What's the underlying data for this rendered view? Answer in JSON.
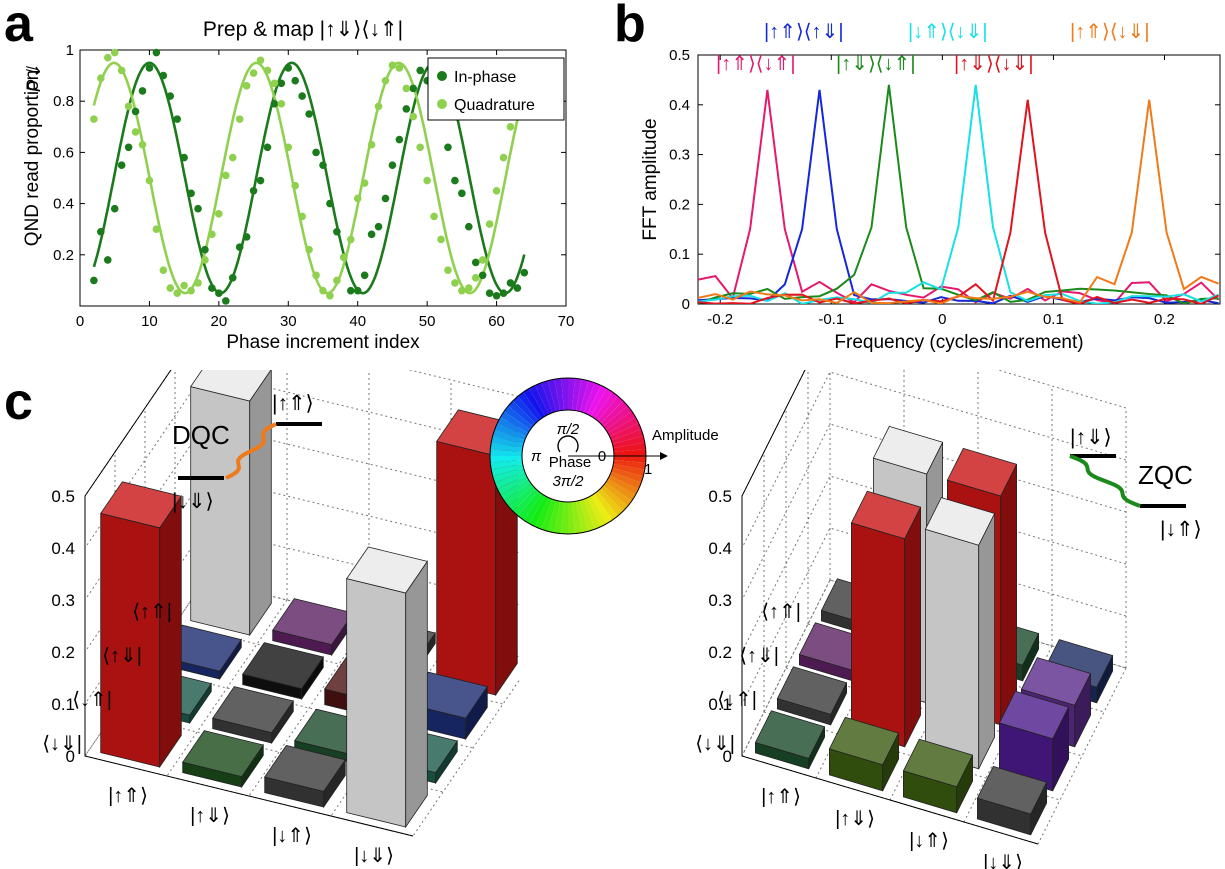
{
  "panels": {
    "a": "a",
    "b": "b",
    "c": "c"
  },
  "chart_data": [
    {
      "type": "line",
      "id": "a",
      "title": "Prep & map |↑⇓⟩⟨↓⇑|",
      "xlabel": "Phase increment index",
      "ylabel": "QND read proportion",
      "ylabel_symbol": "P⇓",
      "xlim": [
        0,
        70
      ],
      "ylim": [
        0,
        1
      ],
      "xticks": [
        0,
        10,
        20,
        30,
        40,
        50,
        60,
        70
      ],
      "yticks": [
        0.2,
        0.4,
        0.6,
        0.8,
        1
      ],
      "legend_position": "top-right",
      "series": [
        {
          "name": "In-phase",
          "color": "#1b7a1b",
          "fit": {
            "offset": 0.5,
            "amplitude": 0.45,
            "period": 20.5,
            "phase_peak_x": 10
          },
          "points": [
            [
              2,
              0.1
            ],
            [
              3,
              0.29
            ],
            [
              4,
              0.18
            ],
            [
              5,
              0.38
            ],
            [
              6,
              0.55
            ],
            [
              7,
              0.62
            ],
            [
              8,
              0.76
            ],
            [
              9,
              0.84
            ],
            [
              10,
              0.93
            ],
            [
              11,
              0.99
            ],
            [
              12,
              0.9
            ],
            [
              13,
              0.82
            ],
            [
              14,
              0.73
            ],
            [
              15,
              0.58
            ],
            [
              16,
              0.44
            ],
            [
              17,
              0.38
            ],
            [
              18,
              0.22
            ],
            [
              19,
              0.07
            ],
            [
              20,
              0.05
            ],
            [
              21,
              0.02
            ],
            [
              22,
              0.11
            ],
            [
              23,
              0.23
            ],
            [
              24,
              0.27
            ],
            [
              25,
              0.45
            ],
            [
              26,
              0.49
            ],
            [
              27,
              0.62
            ],
            [
              28,
              0.79
            ],
            [
              29,
              0.87
            ],
            [
              30,
              0.93
            ],
            [
              31,
              0.88
            ],
            [
              32,
              0.82
            ],
            [
              33,
              0.75
            ],
            [
              34,
              0.6
            ],
            [
              35,
              0.55
            ],
            [
              36,
              0.4
            ],
            [
              37,
              0.29
            ],
            [
              38,
              0.19
            ],
            [
              39,
              0.06
            ],
            [
              40,
              0.06
            ],
            [
              41,
              0.12
            ],
            [
              42,
              0.28
            ],
            [
              43,
              0.31
            ],
            [
              44,
              0.42
            ],
            [
              45,
              0.55
            ],
            [
              46,
              0.65
            ],
            [
              47,
              0.77
            ],
            [
              48,
              0.85
            ],
            [
              49,
              0.92
            ],
            [
              50,
              0.88
            ],
            [
              51,
              0.85
            ],
            [
              52,
              0.79
            ],
            [
              53,
              0.62
            ],
            [
              54,
              0.49
            ],
            [
              55,
              0.44
            ],
            [
              56,
              0.31
            ],
            [
              57,
              0.17
            ],
            [
              58,
              0.12
            ],
            [
              59,
              0.05
            ],
            [
              60,
              0.04
            ],
            [
              61,
              0.05
            ],
            [
              62,
              0.09
            ],
            [
              63,
              0.07
            ],
            [
              64,
              0.13
            ]
          ]
        },
        {
          "name": "Quadrature",
          "color": "#8fd14f",
          "fit": {
            "offset": 0.5,
            "amplitude": 0.45,
            "period": 20.5,
            "phase_peak_x": 4.9
          },
          "points": [
            [
              2,
              0.73
            ],
            [
              3,
              0.89
            ],
            [
              4,
              0.97
            ],
            [
              5,
              0.99
            ],
            [
              6,
              0.92
            ],
            [
              7,
              0.78
            ],
            [
              8,
              0.68
            ],
            [
              9,
              0.63
            ],
            [
              10,
              0.49
            ],
            [
              11,
              0.3
            ],
            [
              12,
              0.14
            ],
            [
              13,
              0.07
            ],
            [
              14,
              0.05
            ],
            [
              15,
              0.08
            ],
            [
              16,
              0.06
            ],
            [
              17,
              0.09
            ],
            [
              18,
              0.18
            ],
            [
              19,
              0.28
            ],
            [
              20,
              0.36
            ],
            [
              21,
              0.51
            ],
            [
              22,
              0.58
            ],
            [
              23,
              0.73
            ],
            [
              24,
              0.86
            ],
            [
              25,
              0.91
            ],
            [
              26,
              0.96
            ],
            [
              27,
              0.92
            ],
            [
              28,
              0.87
            ],
            [
              29,
              0.79
            ],
            [
              30,
              0.62
            ],
            [
              31,
              0.47
            ],
            [
              32,
              0.35
            ],
            [
              33,
              0.22
            ],
            [
              34,
              0.12
            ],
            [
              35,
              0.06
            ],
            [
              36,
              0.04
            ],
            [
              37,
              0.1
            ],
            [
              38,
              0.19
            ],
            [
              39,
              0.26
            ],
            [
              40,
              0.42
            ],
            [
              41,
              0.48
            ],
            [
              42,
              0.63
            ],
            [
              43,
              0.78
            ],
            [
              44,
              0.88
            ],
            [
              45,
              0.94
            ],
            [
              46,
              0.93
            ],
            [
              47,
              0.85
            ],
            [
              48,
              0.74
            ],
            [
              49,
              0.62
            ],
            [
              50,
              0.49
            ],
            [
              51,
              0.35
            ],
            [
              52,
              0.26
            ],
            [
              53,
              0.14
            ],
            [
              54,
              0.09
            ],
            [
              55,
              0.06
            ],
            [
              56,
              0.07
            ],
            [
              57,
              0.11
            ],
            [
              58,
              0.18
            ],
            [
              59,
              0.32
            ],
            [
              60,
              0.45
            ],
            [
              61,
              0.58
            ],
            [
              62,
              0.7
            ],
            [
              63,
              0.79
            ]
          ]
        }
      ]
    },
    {
      "type": "line",
      "id": "b",
      "xlabel": "Frequency (cycles/increment)",
      "ylabel": "FFT amplitude",
      "xlim": [
        -0.22,
        0.25
      ],
      "ylim": [
        0,
        0.5
      ],
      "xticks": [
        -0.2,
        -0.1,
        0,
        0.1,
        0.2
      ],
      "xtick_labels": [
        "-0.2",
        "-0.1",
        "0",
        "0.1",
        "0.2"
      ],
      "yticks": [
        0,
        0.1,
        0.2,
        0.3,
        0.4,
        0.5
      ],
      "ytick_labels": [
        "0",
        "0.1",
        "0.2",
        "0.3",
        "0.4",
        "0.5"
      ],
      "series": [
        {
          "name": "|↑⇑⟩⟨↓⇑|",
          "color": "#e6186e",
          "peak_freq": -0.165,
          "peak_amp": 0.43,
          "side_amp": 0.1
        },
        {
          "name": "|↑⇑⟩⟨↑⇓|",
          "color": "#1428d8",
          "peak_freq": -0.118,
          "peak_amp": 0.43,
          "side_amp": 0.04
        },
        {
          "name": "|↑⇓⟩⟨↓⇑|",
          "color": "#1a8a1a",
          "peak_freq": -0.048,
          "peak_amp": 0.44,
          "side_amp": 0.07
        },
        {
          "name": "|↓⇑⟩⟨↓⇓|",
          "color": "#18e0e6",
          "peak_freq": 0.025,
          "peak_amp": 0.44,
          "side_amp": 0.05
        },
        {
          "name": "|↑⇓⟩⟨↓⇓|",
          "color": "#e0141e",
          "peak_freq": 0.072,
          "peak_amp": 0.41,
          "side_amp": 0.05
        },
        {
          "name": "|↑⇑⟩⟨↓⇓|",
          "color": "#f07a1a",
          "peak_freq": 0.19,
          "peak_amp": 0.41,
          "side_amp": 0.06
        }
      ]
    },
    {
      "type": "bar3d",
      "id": "c-left",
      "zticks": [
        0,
        0.1,
        0.2,
        0.3,
        0.4,
        0.5
      ],
      "ztick_labels": [
        "0",
        "0.1",
        "0.2",
        "0.3",
        "0.4",
        "0.5"
      ],
      "row_labels": [
        "⟨↑⇑|",
        "⟨↑⇓|",
        "⟨↓⇑|",
        "⟨↓⇓|"
      ],
      "col_labels": [
        "|↑⇑⟩",
        "|↑⇓⟩",
        "|↓⇑⟩",
        "|↓⇓⟩"
      ],
      "matrix": [
        [
          0.45,
          0.02,
          0.02,
          0.46
        ],
        [
          0.01,
          0.02,
          0.03,
          0.04
        ],
        [
          0.01,
          0.02,
          0.01,
          0.02
        ],
        [
          0.46,
          0.02,
          0.03,
          0.45
        ]
      ],
      "colors": [
        [
          "#e8e8e8",
          "#5a2060",
          "#3a3a3a",
          "#c81414"
        ],
        [
          "#1a2a70",
          "#111111",
          "#4a1010",
          "#1a2a70"
        ],
        [
          "#1a5a4a",
          "#3a3a3a",
          "#1a4a2a",
          "#1a5a4a"
        ],
        [
          "#c81414",
          "#1a4a1a",
          "#3a3a3a",
          "#e8e8e8"
        ]
      ],
      "annotation": {
        "label": "DQC",
        "upper_level": "|↑⇑⟩",
        "lower_level": "|↓⇓⟩",
        "line_color": "#f07a1a"
      }
    },
    {
      "type": "bar3d",
      "id": "c-right",
      "zticks": [
        0,
        0.1,
        0.2,
        0.3,
        0.4,
        0.5
      ],
      "ztick_labels": [
        "0",
        "0.1",
        "0.2",
        "0.3",
        "0.4",
        "0.5"
      ],
      "row_labels": [
        "⟨↑⇑|",
        "⟨↑⇓|",
        "⟨↓⇑|",
        "⟨↓⇓|"
      ],
      "col_labels": [
        "|↑⇑⟩",
        "|↑⇓⟩",
        "|↓⇑⟩",
        "|↓⇓⟩"
      ],
      "matrix": [
        [
          0.02,
          0.02,
          0.03,
          0.03
        ],
        [
          0.02,
          0.44,
          0.44,
          0.08
        ],
        [
          0.02,
          0.4,
          0.43,
          0.1
        ],
        [
          0.02,
          0.05,
          0.05,
          0.04
        ]
      ],
      "colors": [
        [
          "#3a3a3a",
          "#3a1010",
          "#1a4a2a",
          "#1a2a60"
        ],
        [
          "#5a2060",
          "#e8e8e8",
          "#c81414",
          "#5a2a8a"
        ],
        [
          "#3a3a3a",
          "#c81414",
          "#e8e8e8",
          "#4a1a8a"
        ],
        [
          "#1a4a2a",
          "#3a5a10",
          "#3a5a10",
          "#3a3a3a"
        ]
      ],
      "annotation": {
        "label": "ZQC",
        "upper_level": "|↑⇓⟩",
        "lower_level": "|↓⇑⟩",
        "line_color": "#1a8a1a"
      }
    }
  ],
  "phase_wheel": {
    "label_top": "π/2",
    "label_left": "π",
    "label_right": "0",
    "label_bottom": "3π/2",
    "center_label": "Phase",
    "axis_label": "Amplitude",
    "axis_value": "1"
  }
}
